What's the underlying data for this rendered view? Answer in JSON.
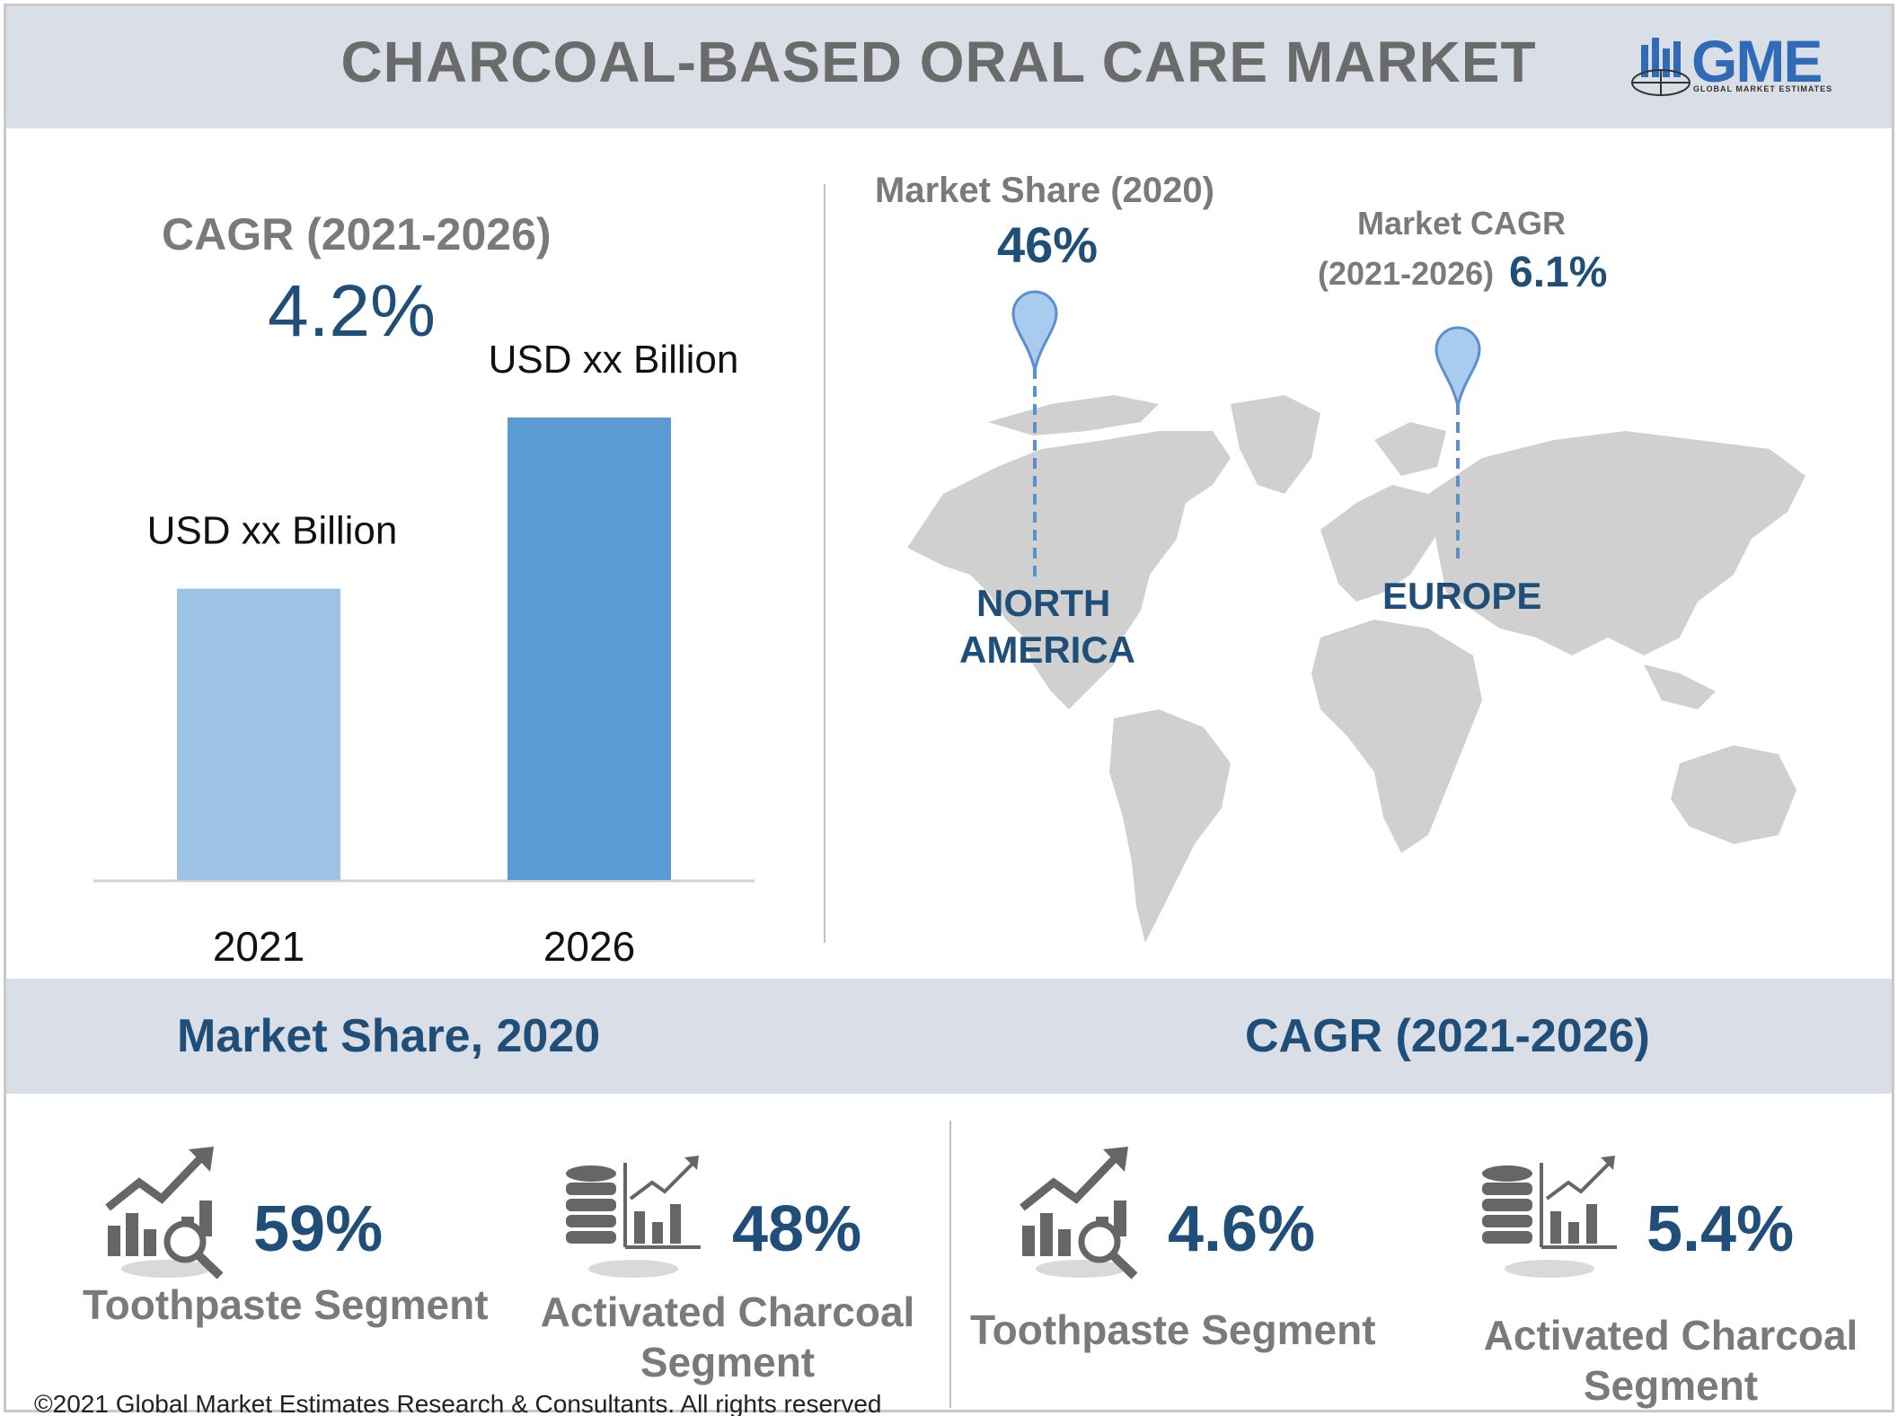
{
  "header": {
    "title": "CHARCOAL-BASED ORAL CARE MARKET"
  },
  "logo": {
    "text": "GME",
    "subtext": "GLOBAL MARKET ESTIMATES"
  },
  "cagr_block": {
    "label": "CAGR (2021-2026)",
    "value": "4.2%"
  },
  "chart_data": {
    "type": "bar",
    "categories": [
      "2021",
      "2026"
    ],
    "values": [
      0.63,
      1.0
    ],
    "value_scale": "relative bar height (values not printed)",
    "data_labels": [
      "USD xx Billion",
      "USD xx  Billion"
    ],
    "colors": [
      "#9dc3e6",
      "#5b9bd5"
    ],
    "ylim": [
      0,
      1
    ],
    "grid": false,
    "legend": "none"
  },
  "map": {
    "north_america": {
      "stat_label": "Market Share (2020)",
      "stat_value": "46%",
      "region_line1": "NORTH",
      "region_line2": "AMERICA"
    },
    "europe": {
      "stat_label_line1": "Market CAGR",
      "stat_label_line2": "(2021-2026)",
      "stat_value": "6.1%",
      "region": "EUROPE"
    },
    "pin_color": "#a9cbee",
    "land_color": "#d0d0d0"
  },
  "bands": {
    "left": "Market Share, 2020",
    "right": "CAGR (2021-2026)"
  },
  "segments": {
    "share_toothpaste": {
      "value": "59%",
      "label": "Toothpaste Segment",
      "icon": "chart-magnifier-icon"
    },
    "share_charcoal": {
      "value": "48%",
      "label_line1": "Activated Charcoal",
      "label_line2": "Segment",
      "icon": "database-chart-icon"
    },
    "cagr_toothpaste": {
      "value": "4.6%",
      "label": "Toothpaste Segment",
      "icon": "chart-magnifier-icon"
    },
    "cagr_charcoal": {
      "value": "5.4%",
      "label_line1": "Activated Charcoal",
      "label_line2": "Segment",
      "icon": "database-chart-icon"
    }
  },
  "footer": {
    "copyright": "©2021 Global Market Estimates Research & Consultants. All rights reserved"
  },
  "colors": {
    "accent_blue": "#1f4e79",
    "band_gray": "#d9dee7",
    "heading_gray": "#7a7a7a"
  }
}
